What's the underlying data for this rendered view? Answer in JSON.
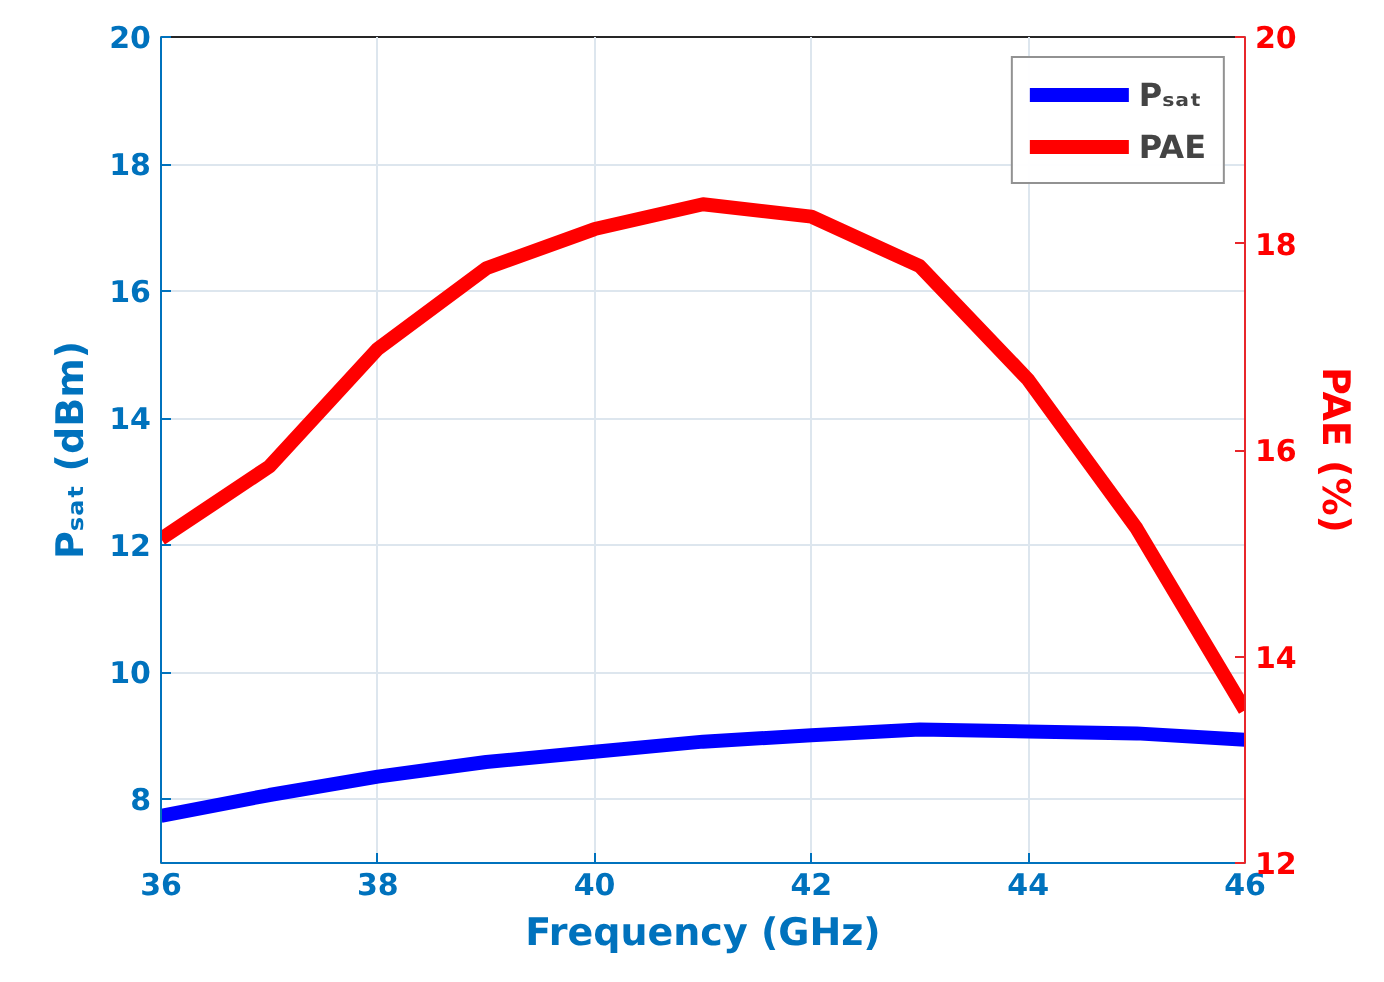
{
  "chart_data": {
    "type": "line",
    "xlabel": "Frequency (GHz)",
    "ylabel": "Pₛₐₜ (dBm)",
    "y2label": "PAE (%)",
    "x": [
      36,
      37,
      38,
      39,
      40,
      41,
      42,
      43,
      44,
      45,
      46
    ],
    "series": [
      {
        "name": "Pₛₐₜ",
        "color": "#0000ff",
        "values": [
          7.74,
          8.07,
          8.36,
          8.59,
          8.75,
          8.91,
          9.01,
          9.1,
          9.07,
          9.04,
          8.94
        ]
      },
      {
        "name": "PAE",
        "color": "#ff0000",
        "axis": "y2",
        "values": [
          15.14,
          15.84,
          16.98,
          17.76,
          18.14,
          18.38,
          18.26,
          17.78,
          16.68,
          15.24,
          13.48
        ]
      }
    ],
    "xlim": [
      36,
      46
    ],
    "xticks": [
      36,
      38,
      40,
      42,
      44,
      46
    ],
    "ylim": [
      7,
      20
    ],
    "yticks": [
      8,
      10,
      12,
      14,
      16,
      18,
      20
    ],
    "y2lim": [
      12,
      20
    ],
    "y2ticks": [
      12,
      14,
      16,
      18,
      20
    ],
    "grid": true,
    "legend": "top right",
    "line_style": "solid"
  }
}
